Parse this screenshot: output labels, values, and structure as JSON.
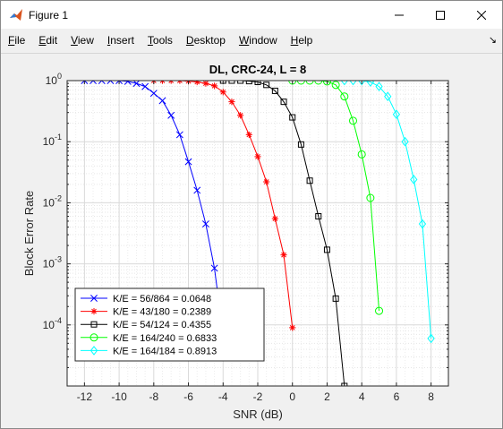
{
  "window": {
    "title": "Figure 1",
    "minimize_symbol": "—",
    "maximize_symbol": "☐",
    "close_symbol": "✕"
  },
  "menu": {
    "items": [
      {
        "first": "F",
        "rest": "ile"
      },
      {
        "first": "E",
        "rest": "dit"
      },
      {
        "first": "V",
        "rest": "iew"
      },
      {
        "first": "I",
        "rest": "nsert"
      },
      {
        "first": "T",
        "rest": "ools"
      },
      {
        "first": "D",
        "rest": "esktop"
      },
      {
        "first": "W",
        "rest": "indow"
      },
      {
        "first": "H",
        "rest": "elp"
      }
    ],
    "dock_symbol": "↘"
  },
  "icons": {
    "app": "matlab-icon",
    "dock": "dock-arrow-icon"
  },
  "chart_data": {
    "type": "line",
    "title": "DL, CRC-24, L = 8",
    "xlabel": "SNR (dB)",
    "ylabel": "Block Error Rate",
    "xlim": [
      -13,
      9
    ],
    "ylim_exponent": [
      -5,
      0
    ],
    "yscale": "log",
    "xticks": [
      -12,
      -10,
      -8,
      -6,
      -4,
      -2,
      0,
      2,
      4,
      6,
      8
    ],
    "yticks": [
      {
        "base": "10",
        "exp": "0",
        "value": 1
      },
      {
        "base": "10",
        "exp": "-1",
        "value": 0.1
      },
      {
        "base": "10",
        "exp": "-2",
        "value": 0.01
      },
      {
        "base": "10",
        "exp": "-3",
        "value": 0.001
      },
      {
        "base": "10",
        "exp": "-4",
        "value": 0.0001
      }
    ],
    "grid": true,
    "minor_grid": true,
    "legend_position": "bottom-left",
    "series": [
      {
        "name": "K/E = 56/864 = 0.0648",
        "color": "#0000ff",
        "marker": "x",
        "x": [
          -12,
          -11.5,
          -11,
          -10.5,
          -10,
          -9.5,
          -9,
          -8.5,
          -8,
          -7.5,
          -7,
          -6.5,
          -6,
          -5.5,
          -5,
          -4.5,
          -4
        ],
        "y": [
          1.0,
          1.0,
          1.0,
          1.0,
          1.0,
          0.97,
          0.9,
          0.8,
          0.62,
          0.47,
          0.27,
          0.13,
          0.047,
          0.016,
          0.0045,
          0.00085,
          7e-05
        ]
      },
      {
        "name": "K/E = 43/180 = 0.2389",
        "color": "#ff0000",
        "marker": "*",
        "x": [
          -8,
          -7.5,
          -7,
          -6.5,
          -6,
          -5.5,
          -5,
          -4.5,
          -4,
          -3.5,
          -3,
          -2.5,
          -2,
          -1.5,
          -1,
          -0.5,
          0
        ],
        "y": [
          1.0,
          1.0,
          1.0,
          1.0,
          0.98,
          0.95,
          0.9,
          0.82,
          0.65,
          0.45,
          0.27,
          0.13,
          0.057,
          0.022,
          0.0055,
          0.0014,
          9e-05
        ]
      },
      {
        "name": "K/E = 54/124 = 0.4355",
        "color": "#000000",
        "marker": "square",
        "x": [
          -4,
          -3.5,
          -3,
          -2.5,
          -2,
          -1.5,
          -1,
          -0.5,
          0,
          0.5,
          1,
          1.5,
          2,
          2.5,
          3
        ],
        "y": [
          1.0,
          1.0,
          1.0,
          0.98,
          0.95,
          0.85,
          0.68,
          0.45,
          0.25,
          0.09,
          0.023,
          0.006,
          0.0017,
          0.00027,
          1e-05
        ]
      },
      {
        "name": "K/E = 164/240 = 0.6833",
        "color": "#00ff00",
        "marker": "circle",
        "x": [
          0,
          0.5,
          1,
          1.5,
          2,
          2.5,
          3,
          3.5,
          4,
          4.5,
          5
        ],
        "y": [
          1.0,
          1.0,
          1.0,
          1.0,
          0.97,
          0.85,
          0.55,
          0.22,
          0.062,
          0.012,
          0.00017
        ]
      },
      {
        "name": "K/E = 164/184 = 0.8913",
        "color": "#00ffff",
        "marker": "diamond",
        "x": [
          3,
          3.5,
          4,
          4.5,
          5,
          5.5,
          6,
          6.5,
          7,
          7.5,
          8
        ],
        "y": [
          1.0,
          1.0,
          1.0,
          0.95,
          0.8,
          0.55,
          0.28,
          0.1,
          0.024,
          0.0045,
          6e-05
        ]
      }
    ]
  }
}
